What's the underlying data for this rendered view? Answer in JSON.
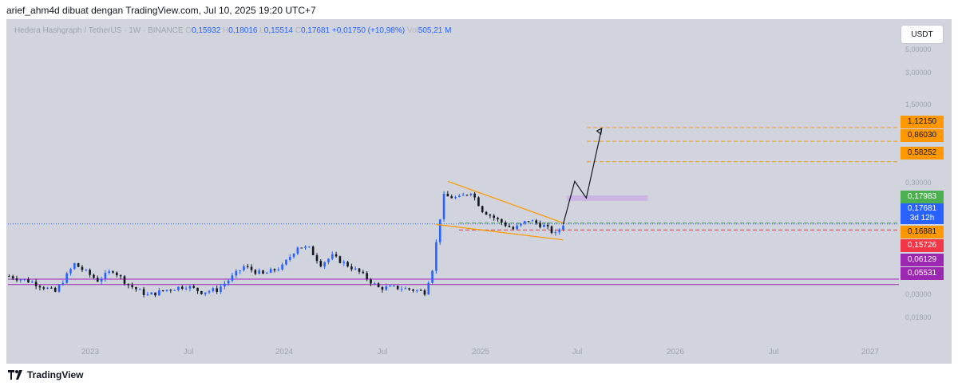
{
  "header": {
    "attribution": "arief_ahm4d dibuat dengan TradingView.com, Jul 10, 2025 19:20 UTC+7"
  },
  "legend": {
    "symbol": "Hedera Hashgraph / TetherUS · 1W · BINANCE",
    "o_label": "O",
    "o": "0,15932",
    "h_label": "H",
    "h": "0,18016",
    "l_label": "L",
    "l": "0,15514",
    "c_label": "C",
    "c": "0,17681",
    "change": "+0,01750 (+10,98%)",
    "vol_label": "Vol",
    "vol": "505,21 M"
  },
  "currency_button": "USDT",
  "y_axis_ticks": [
    "5,00000",
    "3,00000",
    "1,50000",
    "0,30000",
    "0,03000",
    "0,01800"
  ],
  "x_axis_ticks": [
    "2023",
    "Jul",
    "2024",
    "Jul",
    "2025",
    "Jul",
    "2026",
    "Jul",
    "2027"
  ],
  "price_tags": {
    "t1": {
      "value": "1,12150",
      "color": "#ff9800"
    },
    "t2": {
      "value": "0,86030",
      "color": "#ff9800"
    },
    "t3": {
      "value": "0,58252",
      "color": "#ff9800"
    },
    "t4": {
      "value": "0,17983",
      "color": "#4caf50"
    },
    "t5": {
      "value": "0,17681",
      "countdown": "3d 12h",
      "color": "#2962ff"
    },
    "t6": {
      "value": "0,16881",
      "color": "#ff9800"
    },
    "t7": {
      "value": "0,15726",
      "color": "#f23645"
    },
    "t8": {
      "value": "0,06129",
      "color": "#9c27b0"
    },
    "t9": {
      "value": "0,05531",
      "color": "#9c27b0"
    }
  },
  "footer": {
    "brand": "TradingView"
  },
  "chart_data": {
    "type": "candlestick",
    "symbol": "HBARUSDT",
    "interval": "1W",
    "y_scale": "log",
    "ylim": [
      0.0155,
      7.0
    ],
    "x_range": [
      "2022-10",
      "2027-03"
    ],
    "current": {
      "open": 0.15932,
      "high": 0.18016,
      "low": 0.15514,
      "close": 0.17681
    },
    "colors": {
      "up": "#2962ff",
      "down": "#131722"
    },
    "horizontal_levels": [
      {
        "price": 1.1215,
        "color": "#ff9800",
        "style": "dashed"
      },
      {
        "price": 0.8603,
        "color": "#ff9800",
        "style": "dashed"
      },
      {
        "price": 0.58252,
        "color": "#ff9800",
        "style": "dashed"
      },
      {
        "price": 0.17983,
        "color": "#4caf50",
        "style": "dashed"
      },
      {
        "price": 0.17681,
        "color": "#2962ff",
        "style": "dotted"
      },
      {
        "price": 0.15726,
        "color": "#f23645",
        "style": "dashed"
      },
      {
        "price": 0.06129,
        "color": "#9c27b0",
        "style": "solid"
      },
      {
        "price": 0.05531,
        "color": "#9c27b0",
        "style": "solid"
      }
    ],
    "falling_wedge": {
      "upper": [
        [
          "2024-12-09",
          0.4
        ],
        [
          "2025-07-07",
          0.18
        ]
      ],
      "lower": [
        [
          "2024-11-18",
          0.175
        ],
        [
          "2025-07-07",
          0.13
        ]
      ]
    },
    "resistance_zone": {
      "from": "2025-07-14",
      "to": "2025-12-08",
      "low": 0.275,
      "high": 0.305
    },
    "projection_path": [
      [
        "2025-07-07",
        0.176
      ],
      [
        "2025-07-28",
        0.4
      ],
      [
        "2025-08-18",
        0.29
      ],
      [
        "2025-09-15",
        1.1
      ]
    ],
    "key_prices": [
      [
        "2022-10-03",
        0.065
      ],
      [
        "2022-11-14",
        0.058
      ],
      [
        "2022-12-26",
        0.048
      ],
      [
        "2023-01-30",
        0.082
      ],
      [
        "2023-03-13",
        0.06
      ],
      [
        "2023-04-10",
        0.073
      ],
      [
        "2023-05-08",
        0.055
      ],
      [
        "2023-06-12",
        0.045
      ],
      [
        "2023-07-17",
        0.05
      ],
      [
        "2023-08-21",
        0.054
      ],
      [
        "2023-09-18",
        0.048
      ],
      [
        "2023-10-16",
        0.05
      ],
      [
        "2023-11-13",
        0.064
      ],
      [
        "2023-12-04",
        0.078
      ],
      [
        "2024-01-08",
        0.067
      ],
      [
        "2024-02-12",
        0.078
      ],
      [
        "2024-03-11",
        0.115
      ],
      [
        "2024-04-01",
        0.11
      ],
      [
        "2024-04-22",
        0.082
      ],
      [
        "2024-05-13",
        0.095
      ],
      [
        "2024-06-10",
        0.08
      ],
      [
        "2024-07-01",
        0.07
      ],
      [
        "2024-08-05",
        0.052
      ],
      [
        "2024-09-09",
        0.052
      ],
      [
        "2024-10-07",
        0.05
      ],
      [
        "2024-10-28",
        0.048
      ],
      [
        "2024-11-11",
        0.075
      ],
      [
        "2024-11-25",
        0.2
      ],
      [
        "2024-12-02",
        0.3
      ],
      [
        "2024-12-30",
        0.29
      ],
      [
        "2025-01-20",
        0.33
      ],
      [
        "2025-02-10",
        0.23
      ],
      [
        "2025-03-10",
        0.19
      ],
      [
        "2025-04-07",
        0.16
      ],
      [
        "2025-05-05",
        0.19
      ],
      [
        "2025-06-02",
        0.17
      ],
      [
        "2025-06-23",
        0.145
      ],
      [
        "2025-07-07",
        0.177
      ]
    ]
  }
}
